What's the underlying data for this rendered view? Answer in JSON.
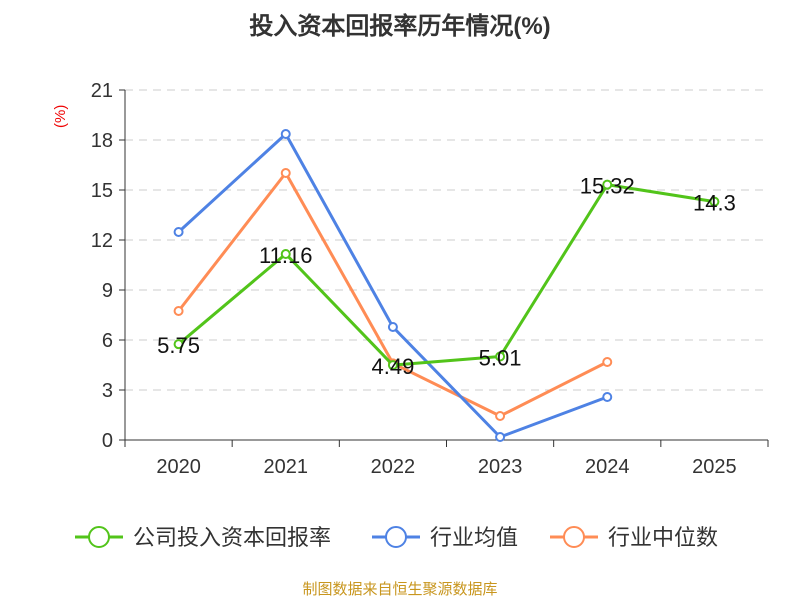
{
  "title": "投入资本回报率历年情况(%)",
  "source": "制图数据来自恒生聚源数据库",
  "chart_data": {
    "type": "line",
    "title": "投入资本回报率历年情况(%)",
    "ylabel": "(%)",
    "categories": [
      "2020",
      "2021",
      "2022",
      "2023",
      "2024",
      "2025"
    ],
    "ylim": [
      0,
      21
    ],
    "yticks": [
      0,
      3,
      6,
      9,
      12,
      15,
      18,
      21
    ],
    "grid": true,
    "legend_position": "bottom",
    "series": [
      {
        "name": "公司投入资本回报率",
        "color": "#52c41a",
        "values": [
          5.75,
          11.16,
          4.49,
          5.01,
          15.32,
          14.3
        ],
        "labels": true
      },
      {
        "name": "行业均值",
        "color": "#4e82e4",
        "values": [
          12.48,
          18.36,
          6.78,
          0.18,
          2.58,
          null
        ],
        "labels": false
      },
      {
        "name": "行业中位数",
        "color": "#ff8c55",
        "values": [
          7.74,
          16.02,
          4.6,
          1.44,
          4.68,
          null
        ],
        "labels": false
      }
    ]
  }
}
